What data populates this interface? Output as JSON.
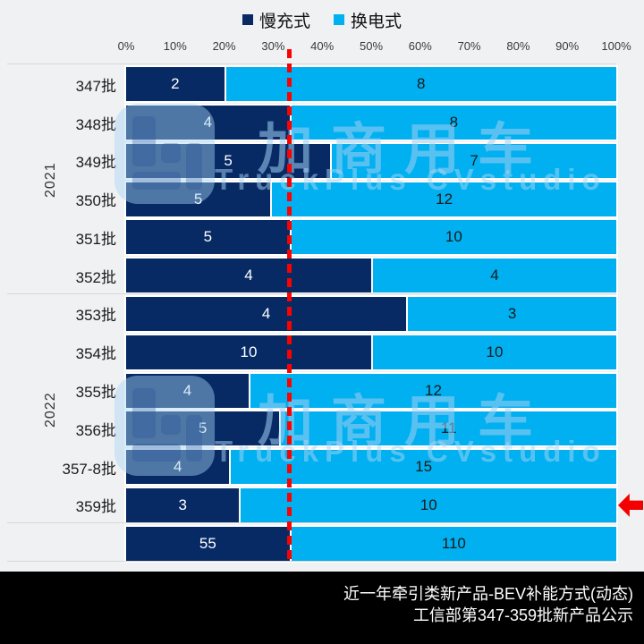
{
  "legend": [
    {
      "label": "慢充式",
      "color": "#072A65"
    },
    {
      "label": "换电式",
      "color": "#00B0F0"
    }
  ],
  "colors": {
    "slow_charging": "#072A65",
    "battery_swap": "#00B0F0",
    "background": "#F0F1F2",
    "reference_line": "#FE0000",
    "arrow": "#F40000",
    "footer_background": "#000000",
    "footer_text": "#FFFFFF",
    "separator": "#D8D8D8"
  },
  "chart_data": {
    "type": "bar",
    "orientation": "horizontal",
    "stacked_100pct": true,
    "title": "近一年牵引类新产品-BEV补能方式(动态)",
    "x_ticks": [
      "0%",
      "10%",
      "20%",
      "30%",
      "40%",
      "50%",
      "60%",
      "70%",
      "80%",
      "90%",
      "100%"
    ],
    "xlim": [
      0,
      100
    ],
    "series_names": [
      "慢充式",
      "换电式"
    ],
    "rows": [
      {
        "label": "347批",
        "year": "2021",
        "slow": 2,
        "swap": 8
      },
      {
        "label": "348批",
        "year": "2021",
        "slow": 4,
        "swap": 8
      },
      {
        "label": "349批",
        "year": "2021",
        "slow": 5,
        "swap": 7
      },
      {
        "label": "350批",
        "year": "2021",
        "slow": 5,
        "swap": 12
      },
      {
        "label": "351批",
        "year": "2021",
        "slow": 5,
        "swap": 10
      },
      {
        "label": "352批",
        "year": "2021",
        "slow": 4,
        "swap": 4
      },
      {
        "label": "353批",
        "year": "2022",
        "slow": 4,
        "swap": 3
      },
      {
        "label": "354批",
        "year": "2022",
        "slow": 10,
        "swap": 10
      },
      {
        "label": "355批",
        "year": "2022",
        "slow": 4,
        "swap": 12
      },
      {
        "label": "356批",
        "year": "2022",
        "slow": 5,
        "swap": 11
      },
      {
        "label": "357-8批",
        "year": "2022",
        "slow": 4,
        "swap": 15
      },
      {
        "label": "359批",
        "year": "2022",
        "slow": 3,
        "swap": 10
      },
      {
        "label": "",
        "year": "",
        "slow": 55,
        "swap": 110
      }
    ],
    "groups": [
      {
        "label": "2021",
        "from": 0,
        "to": 5
      },
      {
        "label": "2022",
        "from": 6,
        "to": 11
      }
    ],
    "group_boundaries": [
      0,
      6,
      12,
      13
    ],
    "reference_line": {
      "position_pct": 33.33,
      "style": "dashed"
    },
    "arrow_marker": {
      "row_label": "359批"
    }
  },
  "watermark": {
    "logo": "truckplus-logo",
    "text_cn": "加商用车",
    "text_en": "TruckPlus CVstudio"
  },
  "footer": {
    "line1": "近一年牵引类新产品-BEV补能方式(动态)",
    "line2": "工信部第347-359批新产品公示"
  }
}
